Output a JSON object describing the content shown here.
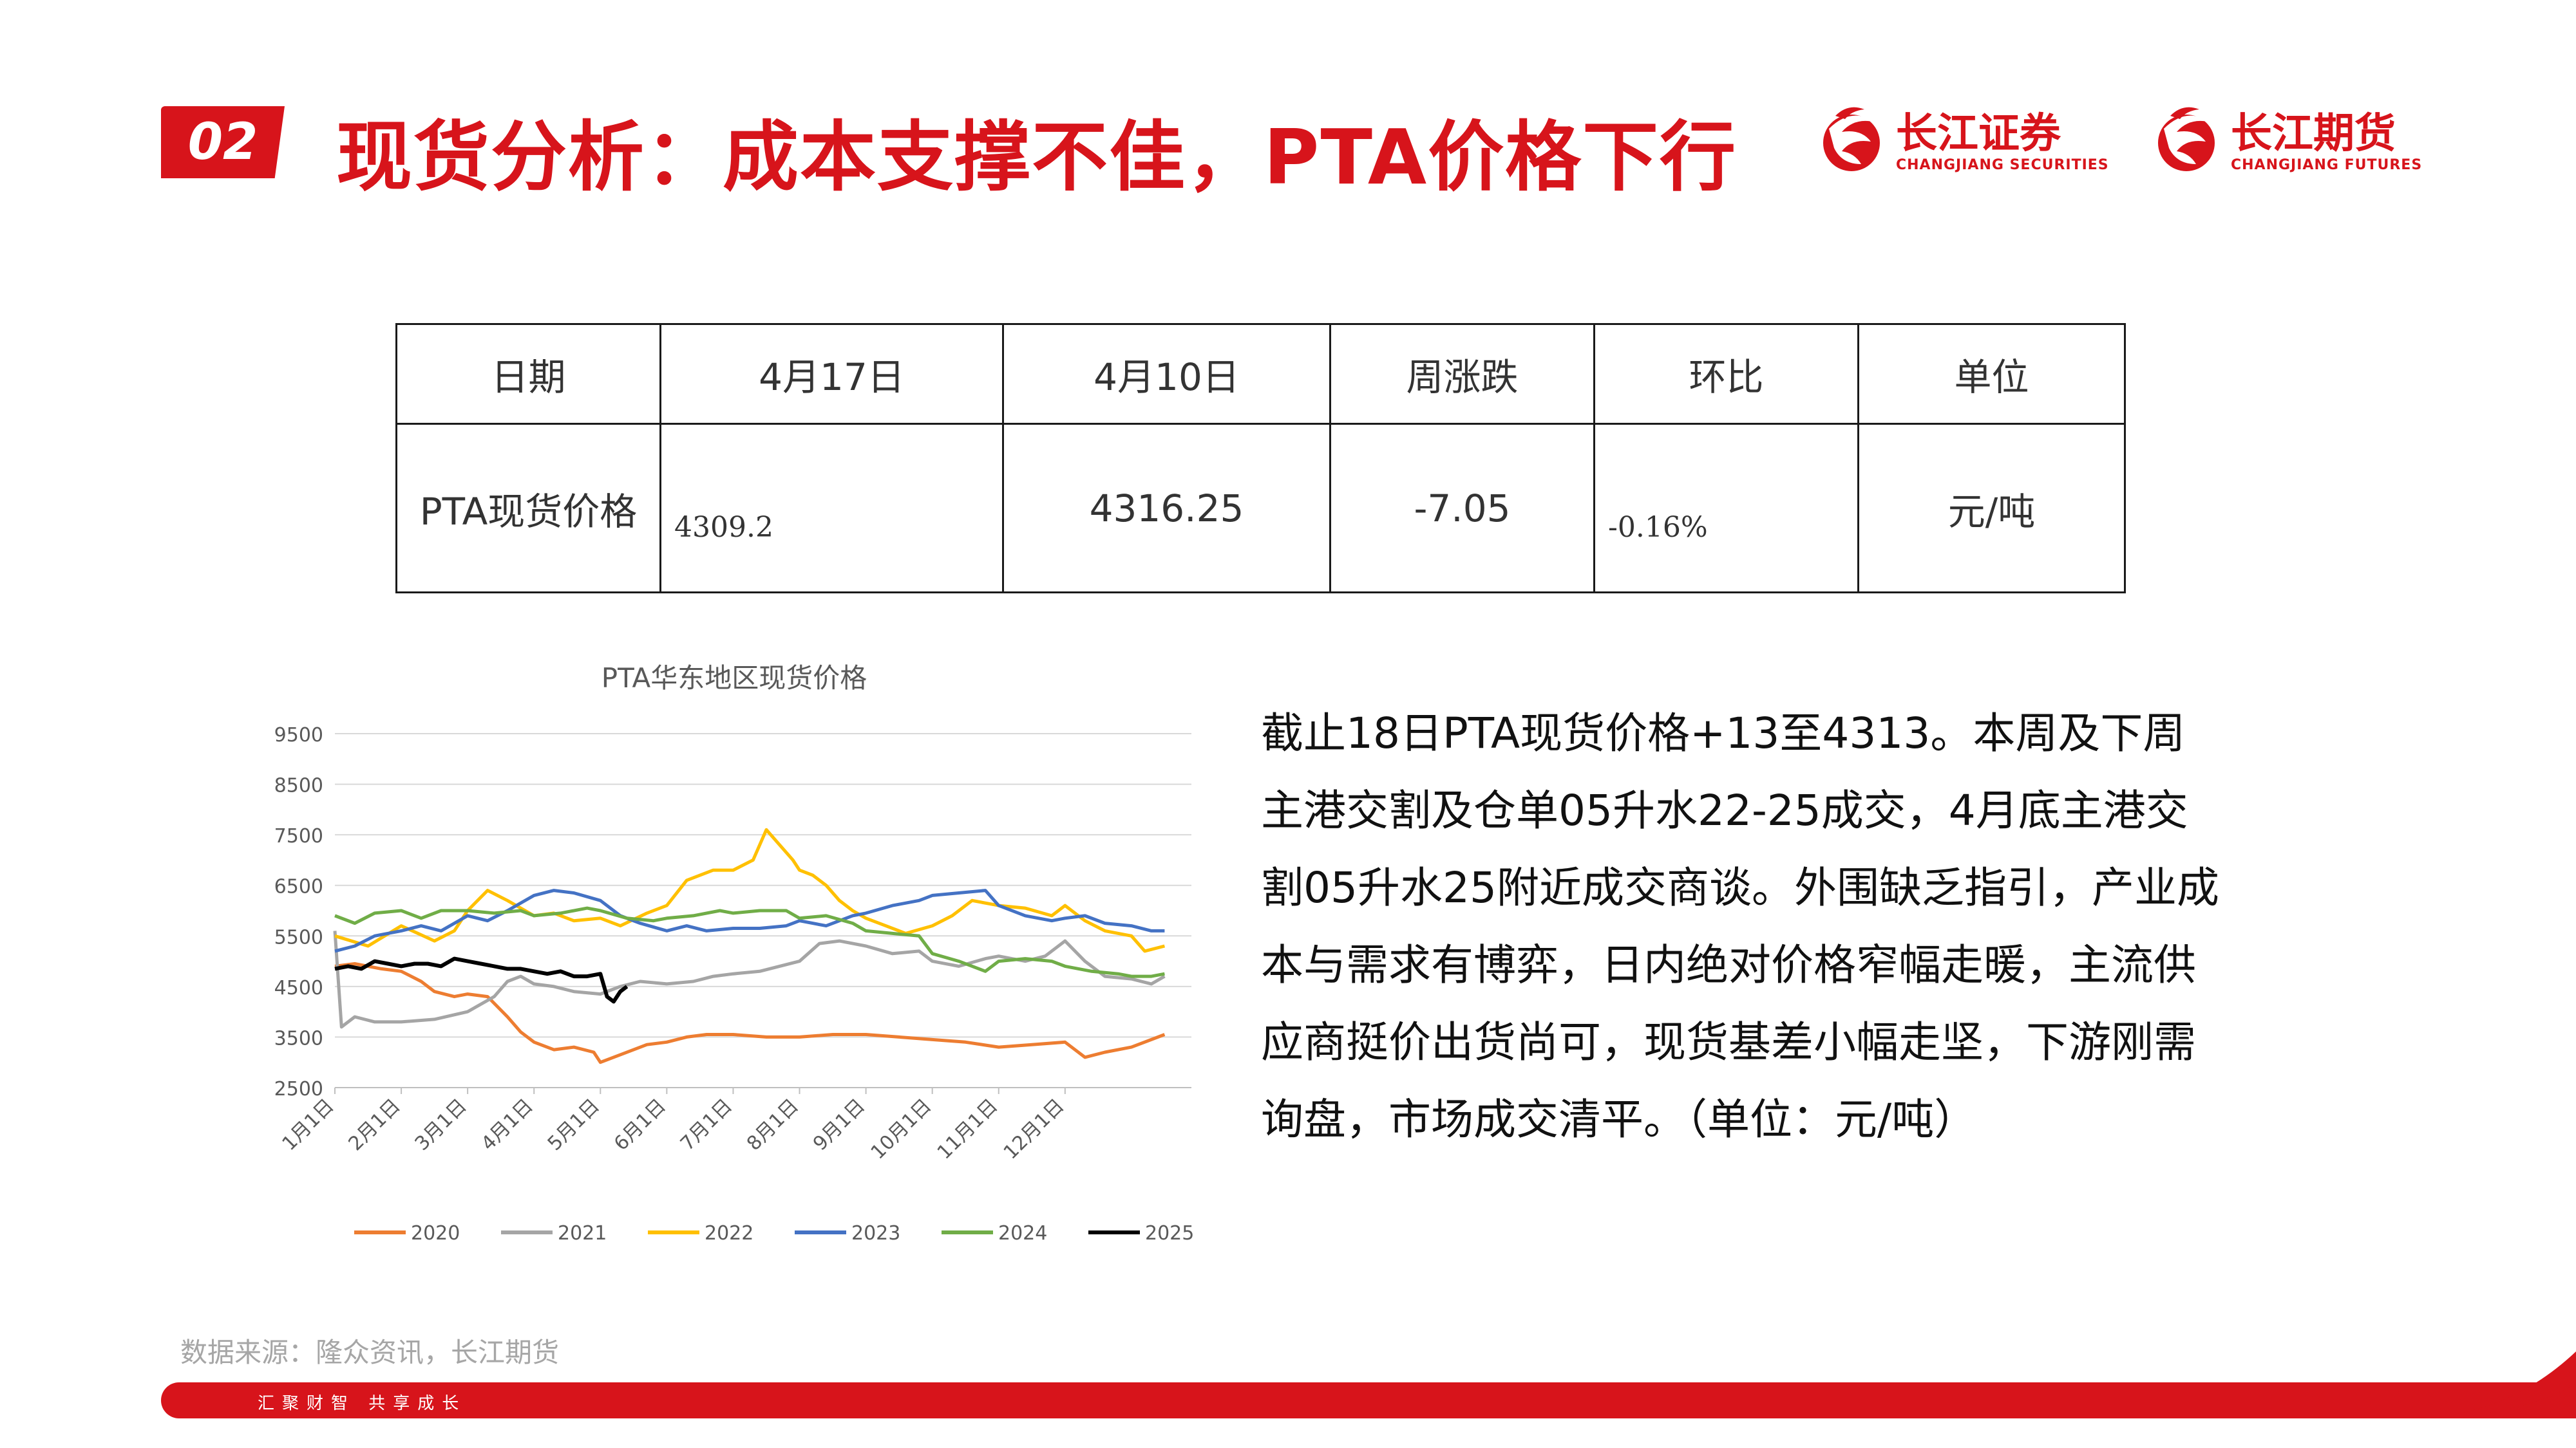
{
  "header": {
    "section_number": "02",
    "title": "现货分析：成本支撑不佳，PTA价格下行",
    "logos": [
      {
        "name_cn": "长江证券",
        "name_en": "CHANGJIANG SECURITIES"
      },
      {
        "name_cn": "长江期货",
        "name_en": "CHANGJIANG FUTURES"
      }
    ]
  },
  "table": {
    "headers": [
      "日期",
      "4月17日",
      "4月10日",
      "周涨跌",
      "环比",
      "单位"
    ],
    "row": [
      "PTA现货价格",
      "4309.2",
      "4316.25",
      "-7.05",
      "-0.16%",
      "元/吨"
    ]
  },
  "paragraph": "截止18日PTA现货价格+13至4313。本周及下周主港交割及仓单05升水22-25成交，4月底主港交割05升水25附近成交商谈。外围缺乏指引，产业成本与需求有博弈，日内绝对价格窄幅走暖，主流供应商挺价出货尚可，现货基差小幅走坚，下游刚需询盘，市场成交清平。（单位：元/吨）",
  "source": "数据来源：隆众资讯，长江期货",
  "footer": {
    "slogan": "汇聚财智  共享成长"
  },
  "colors": {
    "brand_red": "#d7141b"
  },
  "chart_data": {
    "type": "line",
    "title": "PTA华东地区现货价格",
    "x_ticks": [
      "1月1日",
      "2月1日",
      "3月1日",
      "4月1日",
      "5月1日",
      "6月1日",
      "7月1日",
      "8月1日",
      "9月1日",
      "10月1日",
      "11月1日",
      "12月1日"
    ],
    "y_ticks": [
      2500,
      3500,
      4500,
      5500,
      6500,
      7500,
      8500,
      9500
    ],
    "ylim": [
      2500,
      9500
    ],
    "xlim": [
      0,
      12
    ],
    "legend_position": "bottom",
    "grid": true,
    "series": [
      {
        "name": "2020",
        "color": "#ed7d31",
        "x": [
          0,
          0.3,
          0.7,
          1,
          1.3,
          1.5,
          1.8,
          2,
          2.3,
          2.6,
          2.8,
          3,
          3.3,
          3.6,
          3.9,
          4,
          4.3,
          4.7,
          5,
          5.3,
          5.6,
          6,
          6.5,
          7,
          7.5,
          8,
          8.5,
          9,
          9.5,
          10,
          10.5,
          11,
          11.3,
          11.6,
          12,
          12.5
        ],
        "y": [
          4900,
          4950,
          4850,
          4800,
          4600,
          4400,
          4300,
          4350,
          4300,
          3900,
          3600,
          3400,
          3250,
          3300,
          3200,
          3000,
          3150,
          3350,
          3400,
          3500,
          3550,
          3550,
          3500,
          3500,
          3550,
          3550,
          3500,
          3450,
          3400,
          3300,
          3350,
          3400,
          3100,
          3200,
          3300,
          3550
        ]
      },
      {
        "name": "2021",
        "color": "#a5a5a5",
        "x": [
          0,
          0.1,
          0.3,
          0.6,
          1,
          1.5,
          2,
          2.4,
          2.6,
          2.8,
          3,
          3.3,
          3.6,
          4,
          4.3,
          4.6,
          5,
          5.4,
          5.7,
          6,
          6.4,
          6.7,
          7,
          7.3,
          7.6,
          8,
          8.4,
          8.8,
          9,
          9.4,
          9.8,
          10,
          10.4,
          10.7,
          11,
          11.3,
          11.6,
          12,
          12.3,
          12.5
        ],
        "y": [
          5600,
          3700,
          3900,
          3800,
          3800,
          3850,
          4000,
          4300,
          4600,
          4700,
          4550,
          4500,
          4400,
          4350,
          4500,
          4600,
          4550,
          4600,
          4700,
          4750,
          4800,
          4900,
          5000,
          5350,
          5400,
          5300,
          5150,
          5200,
          5000,
          4900,
          5050,
          5100,
          5000,
          5100,
          5400,
          5000,
          4700,
          4650,
          4550,
          4700
        ]
      },
      {
        "name": "2022",
        "color": "#ffc000",
        "x": [
          0,
          0.5,
          1,
          1.5,
          1.8,
          2,
          2.3,
          2.6,
          3,
          3.3,
          3.6,
          4,
          4.3,
          4.7,
          5,
          5.3,
          5.7,
          6,
          6.3,
          6.5,
          6.7,
          6.9,
          7,
          7.2,
          7.4,
          7.6,
          7.8,
          8,
          8.3,
          8.6,
          9,
          9.3,
          9.6,
          10,
          10.4,
          10.8,
          11,
          11.3,
          11.6,
          12,
          12.2,
          12.5
        ],
        "y": [
          5500,
          5300,
          5700,
          5400,
          5600,
          6000,
          6400,
          6200,
          5900,
          5950,
          5800,
          5850,
          5700,
          5950,
          6100,
          6600,
          6800,
          6800,
          7000,
          7600,
          7300,
          7000,
          6800,
          6700,
          6500,
          6200,
          6000,
          5850,
          5700,
          5550,
          5700,
          5900,
          6200,
          6100,
          6050,
          5900,
          6100,
          5800,
          5600,
          5500,
          5200,
          5300
        ]
      },
      {
        "name": "2023",
        "color": "#4472c4",
        "x": [
          0,
          0.3,
          0.6,
          1,
          1.3,
          1.6,
          2,
          2.3,
          2.6,
          3,
          3.3,
          3.6,
          4,
          4.3,
          4.6,
          5,
          5.3,
          5.6,
          6,
          6.4,
          6.8,
          7,
          7.4,
          7.8,
          8,
          8.4,
          8.8,
          9,
          9.4,
          9.8,
          10,
          10.4,
          10.8,
          11,
          11.3,
          11.6,
          12,
          12.3,
          12.5
        ],
        "y": [
          5200,
          5300,
          5500,
          5600,
          5700,
          5600,
          5900,
          5800,
          6000,
          6300,
          6400,
          6350,
          6200,
          5900,
          5750,
          5600,
          5700,
          5600,
          5650,
          5650,
          5700,
          5800,
          5700,
          5900,
          5950,
          6100,
          6200,
          6300,
          6350,
          6400,
          6100,
          5900,
          5800,
          5850,
          5900,
          5750,
          5700,
          5600,
          5600
        ]
      },
      {
        "name": "2024",
        "color": "#70ad47",
        "x": [
          0,
          0.3,
          0.6,
          1,
          1.3,
          1.6,
          2,
          2.4,
          2.8,
          3,
          3.4,
          3.8,
          4,
          4.4,
          4.8,
          5,
          5.4,
          5.8,
          6,
          6.4,
          6.8,
          7,
          7.4,
          7.8,
          8,
          8.4,
          8.8,
          9,
          9.4,
          9.8,
          10,
          10.4,
          10.8,
          11,
          11.4,
          11.8,
          12,
          12.3,
          12.5
        ],
        "y": [
          5900,
          5750,
          5950,
          6000,
          5850,
          6000,
          6000,
          5950,
          6000,
          5900,
          5950,
          6050,
          6000,
          5850,
          5800,
          5850,
          5900,
          6000,
          5950,
          6000,
          6000,
          5850,
          5900,
          5750,
          5600,
          5550,
          5500,
          5150,
          5000,
          4800,
          5000,
          5050,
          5000,
          4900,
          4800,
          4750,
          4700,
          4700,
          4750
        ]
      },
      {
        "name": "2025",
        "color": "#000000",
        "x": [
          0,
          0.2,
          0.4,
          0.6,
          0.8,
          1,
          1.2,
          1.4,
          1.6,
          1.8,
          2,
          2.2,
          2.4,
          2.6,
          2.8,
          3,
          3.2,
          3.4,
          3.6,
          3.8,
          4,
          4.1,
          4.2,
          4.3,
          4.4
        ],
        "y": [
          4850,
          4900,
          4850,
          5000,
          4950,
          4900,
          4950,
          4950,
          4900,
          5050,
          5000,
          4950,
          4900,
          4850,
          4850,
          4800,
          4750,
          4800,
          4700,
          4700,
          4750,
          4300,
          4200,
          4400,
          4500
        ]
      }
    ]
  }
}
